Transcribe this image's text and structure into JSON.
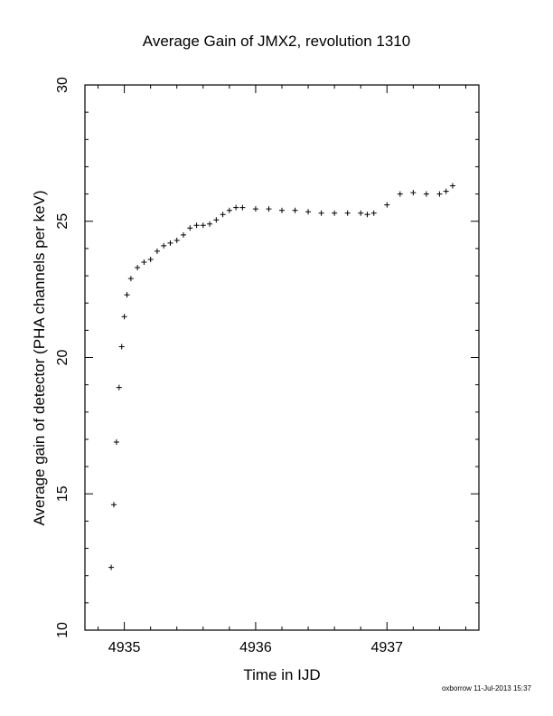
{
  "chart_data": {
    "type": "scatter",
    "title": "Average Gain of JMX2, revolution 1310",
    "xlabel": "Time in IJD",
    "ylabel": "Average gain of detector (PHA channels per keV)",
    "xlim": [
      4934.7,
      4937.7
    ],
    "ylim": [
      10,
      30
    ],
    "xticks": [
      4935,
      4936,
      4937
    ],
    "yticks": [
      10,
      15,
      20,
      25,
      30
    ],
    "marker": "+",
    "color": "#000000",
    "series": [
      {
        "x": [
          4934.9,
          4934.92,
          4934.94,
          4934.96,
          4934.98,
          4935.0,
          4935.02,
          4935.05,
          4935.1,
          4935.15,
          4935.2,
          4935.25,
          4935.3,
          4935.35,
          4935.4,
          4935.45,
          4935.5,
          4935.55,
          4935.6,
          4935.65,
          4935.7,
          4935.75,
          4935.8,
          4935.85,
          4935.9,
          4936.0,
          4936.1,
          4936.2,
          4936.3,
          4936.4,
          4936.5,
          4936.6,
          4936.7,
          4936.8,
          4936.85,
          4936.9,
          4937.0,
          4937.1,
          4937.2,
          4937.3,
          4937.4,
          4937.45,
          4937.5
        ],
        "y": [
          12.3,
          14.6,
          16.9,
          18.9,
          20.4,
          21.5,
          22.3,
          22.9,
          23.3,
          23.5,
          23.6,
          23.9,
          24.1,
          24.2,
          24.3,
          24.5,
          24.75,
          24.85,
          24.85,
          24.9,
          25.05,
          25.25,
          25.4,
          25.5,
          25.5,
          25.45,
          25.45,
          25.4,
          25.4,
          25.35,
          25.3,
          25.3,
          25.3,
          25.3,
          25.25,
          25.3,
          25.6,
          26.0,
          26.05,
          26.0,
          26.0,
          26.1,
          26.3
        ]
      }
    ]
  },
  "footer": {
    "credit": "oxborrow 11-Jul-2013 15:37"
  }
}
